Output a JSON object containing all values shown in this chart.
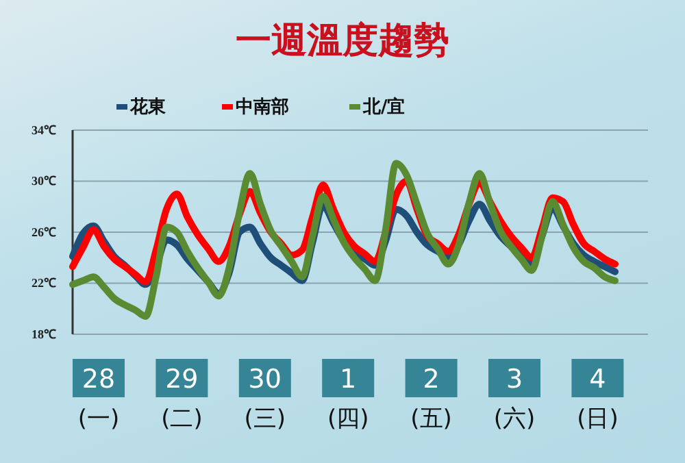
{
  "chart_data": {
    "type": "line",
    "title": "一週溫度趨勢",
    "categories": [
      null,
      null,
      null,
      null,
      null,
      null,
      null,
      null,
      null,
      null,
      null,
      null,
      null,
      null,
      null,
      null,
      null,
      null,
      null,
      null,
      null,
      null,
      null,
      null,
      null,
      null,
      null,
      null,
      null,
      null,
      null,
      null,
      null,
      null,
      null,
      null,
      null,
      null,
      null,
      null,
      null,
      null,
      null,
      null,
      null,
      null,
      null,
      null,
      null,
      null,
      null,
      null,
      null
    ],
    "ylim": [
      18,
      34
    ],
    "yticks": [
      {
        "value": 18,
        "label": "18℃"
      },
      {
        "value": 22,
        "label": "22℃"
      },
      {
        "value": 26,
        "label": "26℃"
      },
      {
        "value": 30,
        "label": "30℃"
      },
      {
        "value": 34,
        "label": "34℃"
      }
    ],
    "grid": "y",
    "legend": "top",
    "line_style": "solid",
    "annotations": [
      "28",
      "29",
      "30",
      "1",
      "2",
      "3",
      "4",
      "(一)",
      "(二)",
      "(三)",
      "(四)",
      "(五)",
      "(六)",
      "(日)"
    ],
    "series": [
      {
        "name": "花東",
        "color": "#1f4e79",
        "values": [
          24.1,
          25.9,
          26.5,
          25.3,
          24.1,
          23.4,
          22.6,
          21.9,
          23.3,
          25.4,
          25.0,
          23.9,
          23.0,
          22.1,
          21.2,
          22.8,
          26.0,
          26.4,
          25.1,
          24.0,
          23.4,
          22.8,
          22.2,
          25.2,
          28.1,
          26.7,
          25.3,
          24.4,
          23.9,
          23.4,
          25.3,
          27.8,
          27.3,
          26.0,
          25.0,
          24.5,
          24.0,
          25.0,
          26.9,
          28.2,
          26.9,
          25.7,
          24.9,
          24.2,
          23.5,
          25.7,
          27.9,
          26.5,
          25.1,
          24.2,
          23.7,
          23.3,
          22.9
        ]
      },
      {
        "name": "中南部",
        "color": "#ff0000",
        "values": [
          23.3,
          24.8,
          26.2,
          24.9,
          23.9,
          23.3,
          22.7,
          22.1,
          24.6,
          27.8,
          29.0,
          27.2,
          25.8,
          24.7,
          23.7,
          24.9,
          27.4,
          29.2,
          27.5,
          26.0,
          25.1,
          24.2,
          24.6,
          27.2,
          29.7,
          27.8,
          26.0,
          24.9,
          24.3,
          23.7,
          26.0,
          28.9,
          30.0,
          27.8,
          25.7,
          25.1,
          24.5,
          25.8,
          28.2,
          29.9,
          28.4,
          26.9,
          25.7,
          24.8,
          24.0,
          26.3,
          28.7,
          28.4,
          26.6,
          25.1,
          24.5,
          23.9,
          23.5
        ]
      },
      {
        "name": "北/宜",
        "color": "#5a8a32",
        "values": [
          21.9,
          22.2,
          22.5,
          21.7,
          20.8,
          20.3,
          19.9,
          19.4,
          22.5,
          26.4,
          26.0,
          24.5,
          23.2,
          22.1,
          21.0,
          23.2,
          27.6,
          30.6,
          28.2,
          26.1,
          24.9,
          23.7,
          22.5,
          25.7,
          28.8,
          27.0,
          25.2,
          24.0,
          23.1,
          22.2,
          26.2,
          31.4,
          30.5,
          28.2,
          25.9,
          24.7,
          23.5,
          25.0,
          28.3,
          30.6,
          28.3,
          26.1,
          24.9,
          23.9,
          23.0,
          25.7,
          28.4,
          26.6,
          24.8,
          23.7,
          23.2,
          22.5,
          22.2
        ]
      }
    ]
  }
}
